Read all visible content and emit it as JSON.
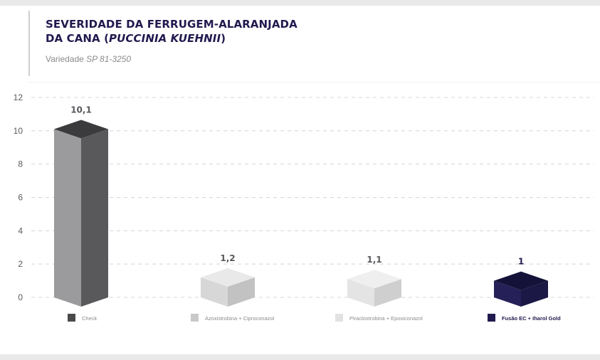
{
  "header": {
    "title_line1": "SEVERIDADE DA FERRUGEM-ALARANJADA",
    "title_line2_prefix": "DA CANA (",
    "title_line2_italic": "PUCCINIA KUEHNII",
    "title_line2_suffix": ")",
    "subtitle_prefix": "Variedade ",
    "subtitle_italic": "SP 81-3250"
  },
  "chart_data": {
    "type": "bar",
    "categories": [
      "Check",
      "Azoxistrobina + Ciproconazol",
      "Piraclostrobina + Epoxiconazol",
      "Fusão EC + Iharol Gold"
    ],
    "values": [
      10.1,
      1.2,
      1.1,
      1
    ],
    "value_labels": [
      "10,1",
      "1,2",
      "1,1",
      "1"
    ],
    "ylim": [
      0,
      12
    ],
    "yticks": [
      0,
      2,
      4,
      6,
      8,
      10,
      12
    ],
    "grid": true,
    "legend": "bottom",
    "colors": {
      "front": [
        "#9b9b9d",
        "#d7d7d8",
        "#e4e4e5",
        "#252158"
      ],
      "side": [
        "#59595b",
        "#c2c2c3",
        "#cfcfd0",
        "#1b1846"
      ],
      "top": [
        "#3b3b3d",
        "#e9e9ea",
        "#efefef",
        "#141238"
      ],
      "legend": [
        "#4a4a4c",
        "#c9c9ca",
        "#e2e2e3",
        "#201a4e"
      ],
      "legend_text": [
        "#8a8a8e",
        "#8a8a8e",
        "#8a8a8e",
        "#201a4e"
      ]
    }
  }
}
